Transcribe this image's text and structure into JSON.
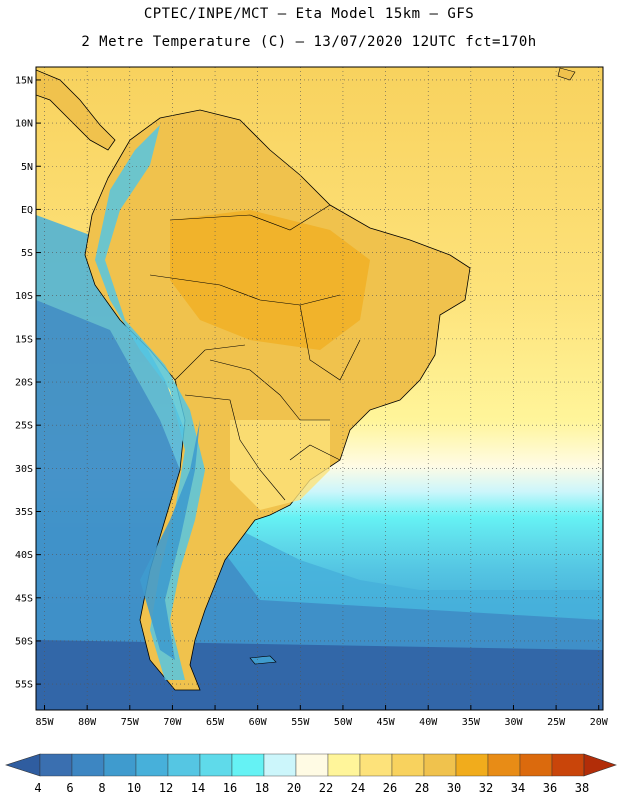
{
  "header": {
    "line1": "CPTEC/INPE/MCT –  Eta Model 15km – GFS",
    "line2": "2 Metre Temperature (C) – 13/07/2020 12UTC fct=170h"
  },
  "map": {
    "lat_labels": [
      "15N",
      "10N",
      "5N",
      "EQ",
      "5S",
      "10S",
      "15S",
      "20S",
      "25S",
      "30S",
      "35S",
      "40S",
      "45S",
      "50S",
      "55S"
    ],
    "lon_labels": [
      "85W",
      "80W",
      "75W",
      "70W",
      "65W",
      "60W",
      "55W",
      "50W",
      "45W",
      "40W",
      "35W",
      "30W",
      "25W",
      "20W"
    ],
    "extent": {
      "lon_min": -86,
      "lon_max": -19.5,
      "lat_min": -58,
      "lat_max": 16.5
    }
  },
  "colorbar": {
    "labels": [
      "4",
      "6",
      "8",
      "10",
      "12",
      "14",
      "16",
      "18",
      "20",
      "22",
      "24",
      "26",
      "28",
      "30",
      "32",
      "34",
      "36",
      "38"
    ],
    "colors": [
      "#3a6fb0",
      "#3d86c2",
      "#3f9bce",
      "#47b0da",
      "#55c6e3",
      "#5fdaea",
      "#65f2f4",
      "#ccf6fb",
      "#fffbe4",
      "#fff59a",
      "#fde27a",
      "#f8d25e",
      "#f0c24d",
      "#f1ac1c",
      "#e88c16",
      "#db6a0d",
      "#c9450a",
      "#b22d08"
    ],
    "under_color": "#2f5da0",
    "over_color": "#b22d08"
  }
}
